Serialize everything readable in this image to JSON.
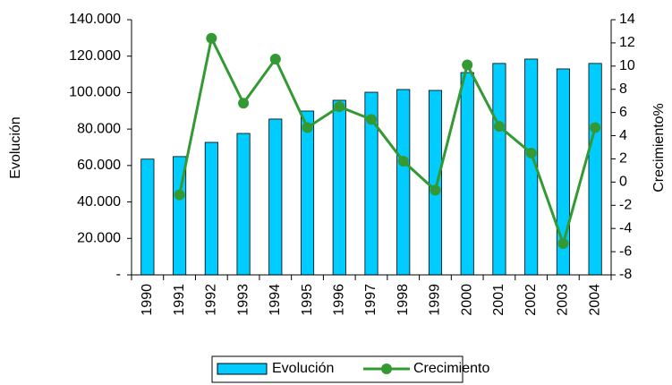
{
  "chart_data": {
    "type": "bar",
    "categories": [
      "1990",
      "1991",
      "1992",
      "1993",
      "1994",
      "1995",
      "1996",
      "1997",
      "1998",
      "1999",
      "2000",
      "2001",
      "2002",
      "2003",
      "2004"
    ],
    "ylabel": "Evolución",
    "y2label": "Crecimiento%",
    "series": [
      {
        "name": "Evolución",
        "type": "bar",
        "color": "#00ccff",
        "values": [
          63500,
          64900,
          72700,
          77600,
          85500,
          89900,
          95800,
          100200,
          101700,
          101200,
          111000,
          116000,
          118400,
          113000,
          116000
        ]
      },
      {
        "name": "Crecimiento",
        "type": "line",
        "axis": "y2",
        "color": "#339933",
        "values": [
          null,
          -1.1,
          12.4,
          6.8,
          10.6,
          4.7,
          6.5,
          5.4,
          1.8,
          -0.7,
          10.1,
          4.8,
          2.5,
          -5.3,
          4.7
        ]
      }
    ],
    "ylim": [
      0,
      140000
    ],
    "yticks": [
      {
        "value": 0,
        "label": "-"
      },
      {
        "value": 20000,
        "label": "20.000"
      },
      {
        "value": 40000,
        "label": "40.000"
      },
      {
        "value": 60000,
        "label": "60.000"
      },
      {
        "value": 80000,
        "label": "80.000"
      },
      {
        "value": 100000,
        "label": "100.000"
      },
      {
        "value": 120000,
        "label": "120.000"
      },
      {
        "value": 140000,
        "label": "140.000"
      }
    ],
    "y2lim": [
      -8,
      14
    ],
    "y2ticks": [
      -8,
      -6,
      -4,
      -2,
      0,
      2,
      4,
      6,
      8,
      10,
      12,
      14
    ],
    "legend": "bottom"
  }
}
